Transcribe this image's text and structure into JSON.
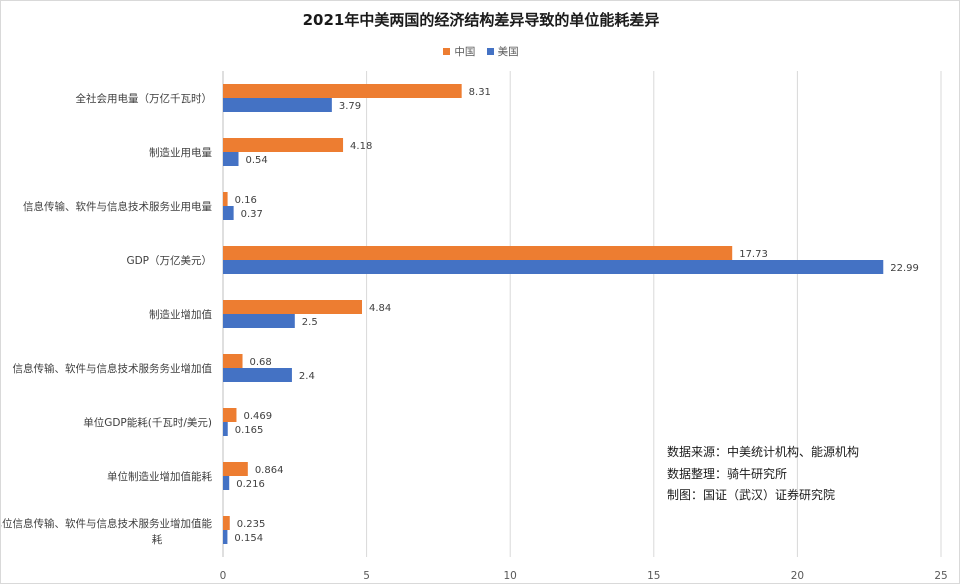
{
  "colors": {
    "china": "#ED7D31",
    "usa": "#4472C4",
    "grid": "#d9d9d9"
  },
  "chart_data": {
    "type": "bar",
    "orientation": "horizontal",
    "title": "2021年中美两国的经济结构差异导致的单位能耗差异",
    "categories": [
      "全社会用电量（万亿千瓦时）",
      "制造业用电量",
      "信息传输、软件与信息技术服务业用电量",
      "GDP（万亿美元）",
      "制造业增加值",
      "信息传输、软件与信息技术服务务业增加值",
      "单位GDP能耗(千瓦时/美元)",
      "单位制造业增加值能耗",
      "单位信息传输、软件与信息技术服务业增加值能耗"
    ],
    "series": [
      {
        "name": "中国",
        "values": [
          8.31,
          4.18,
          0.16,
          17.73,
          4.84,
          0.68,
          0.469,
          0.864,
          0.235
        ],
        "labels": [
          "8.31",
          "4.18",
          "0.16",
          "17.73",
          "4.84",
          "0.68",
          "0.469",
          "0.864",
          "0.235"
        ]
      },
      {
        "name": "美国",
        "values": [
          3.79,
          0.54,
          0.37,
          22.99,
          2.5,
          2.4,
          0.165,
          0.216,
          0.154
        ],
        "labels": [
          "3.79",
          "0.54",
          "0.37",
          "22.99",
          "2.5",
          "2.4",
          "0.165",
          "0.216",
          "0.154"
        ]
      }
    ],
    "xlim": [
      0,
      25
    ],
    "xticks": [
      "0",
      "5",
      "10",
      "15",
      "20",
      "25"
    ],
    "grid": true,
    "legend_position": "top-center",
    "xlabel": "",
    "ylabel": ""
  },
  "notes": {
    "source": "数据来源：中美统计机构、能源机构",
    "arrangement": "数据整理：骑牛研究所",
    "maker": "制图：国证（武汉）证券研究院"
  }
}
